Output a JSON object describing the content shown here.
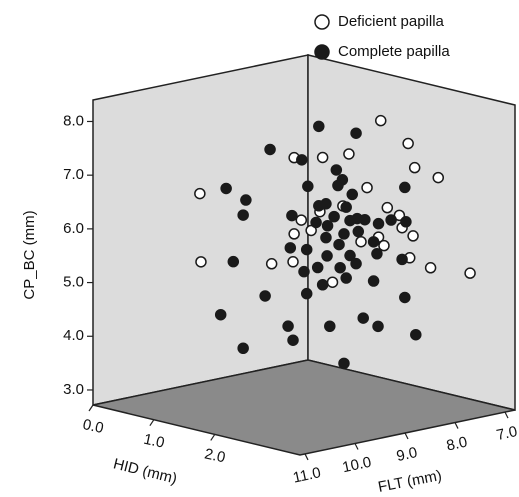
{
  "chart_data": {
    "type": "scatter",
    "xlabel": "HID (mm)",
    "ylabel": "FLT (mm)",
    "zlabel": "CP_BC (mm)",
    "xlim": [
      0,
      3.4
    ],
    "ylim": [
      11.1,
      6.8
    ],
    "zlim": [
      2.72,
      8.4
    ],
    "xticks": [
      {
        "value": 0,
        "label": "0.0"
      },
      {
        "value": 1,
        "label": "1.0"
      },
      {
        "value": 2,
        "label": "2.0"
      }
    ],
    "yticks": [
      {
        "value": 11,
        "label": "11.0"
      },
      {
        "value": 10,
        "label": "10.0"
      },
      {
        "value": 9,
        "label": "9.0"
      },
      {
        "value": 8,
        "label": "8.0"
      },
      {
        "value": 7,
        "label": "7.0"
      }
    ],
    "zticks": [
      {
        "value": 3,
        "label": "3.0"
      },
      {
        "value": 4,
        "label": "4.0"
      },
      {
        "value": 5,
        "label": "5.0"
      },
      {
        "value": 6,
        "label": "6.0"
      },
      {
        "value": 7,
        "label": "7.0"
      },
      {
        "value": 8,
        "label": "8.0"
      }
    ],
    "legend": "top",
    "series": [
      {
        "name": "Deficient papilla",
        "color": "#1a1a1a",
        "hollow": true,
        "x": [
          2.32,
          2.54,
          1.85,
          2.06,
          2.59,
          1.62,
          0.86,
          2.21,
          2.78,
          2.01,
          2.37,
          1.68,
          2.47,
          1.76,
          1.62,
          2.49,
          2.34,
          2.16,
          2.3,
          2.58,
          2.55,
          0.87,
          1.44,
          1.61,
          2.72,
          3.04,
          1.93,
          1.83
        ],
        "y": [
          8.17,
          7.89,
          8.76,
          8.49,
          7.82,
          9.05,
          10.01,
          8.31,
          7.58,
          8.55,
          8.1,
          8.98,
          7.98,
          8.88,
          9.05,
          7.95,
          8.13,
          8.37,
          8.19,
          7.84,
          7.87,
          10.0,
          9.28,
          9.06,
          7.66,
          7.26,
          8.66,
          8.79
        ],
        "z": [
          8.08,
          7.66,
          7.38,
          7.45,
          7.21,
          7.37,
          6.68,
          6.83,
          7.03,
          6.48,
          6.46,
          6.21,
          6.32,
          6.02,
          5.95,
          6.09,
          5.75,
          5.82,
          5.91,
          5.94,
          5.53,
          5.41,
          5.39,
          5.43,
          5.35,
          5.26,
          5.06,
          6.37
        ]
      },
      {
        "name": "Complete papilla",
        "color": "#1a1a1a",
        "hollow": false,
        "x": [
          1.82,
          2.12,
          1.43,
          1.68,
          1.96,
          2.01,
          1.97,
          1.07,
          1.23,
          1.73,
          2.09,
          2.51,
          1.82,
          1.88,
          1.21,
          1.6,
          1.94,
          2.04,
          2.13,
          1.8,
          1.89,
          2.07,
          2.19,
          2.3,
          2.4,
          2.52,
          2.02,
          2.14,
          2.26,
          1.88,
          1.59,
          1.72,
          1.98,
          2.29,
          2.49,
          1.13,
          1.89,
          2.07,
          1.7,
          1.81,
          1.99,
          2.12,
          2.04,
          1.85,
          2.26,
          1.72,
          1.39,
          2.51,
          1.03,
          2.18,
          2.3,
          1.57,
          1.91,
          1.61,
          2.6,
          1.21,
          2.02
        ],
        "y": [
          8.8,
          8.42,
          9.3,
          8.97,
          8.62,
          8.56,
          8.6,
          9.74,
          9.54,
          8.91,
          8.46,
          7.92,
          8.8,
          8.73,
          9.57,
          9.07,
          8.64,
          8.52,
          8.41,
          8.83,
          8.71,
          8.48,
          8.33,
          8.19,
          8.06,
          7.91,
          8.54,
          8.4,
          8.24,
          8.73,
          9.09,
          8.92,
          8.59,
          8.21,
          7.95,
          9.67,
          8.72,
          8.48,
          8.95,
          8.81,
          8.58,
          8.42,
          8.52,
          8.76,
          8.24,
          8.92,
          9.35,
          7.92,
          9.8,
          8.35,
          8.2,
          9.11,
          8.69,
          9.06,
          7.81,
          9.57,
          8.54
        ],
        "z": [
          7.96,
          7.84,
          7.52,
          7.33,
          7.15,
          6.97,
          6.86,
          6.78,
          6.57,
          6.84,
          6.7,
          6.84,
          6.48,
          6.52,
          6.29,
          6.29,
          6.28,
          6.46,
          6.25,
          6.17,
          6.11,
          6.21,
          6.23,
          6.16,
          6.23,
          6.2,
          5.96,
          6.01,
          5.82,
          5.89,
          5.69,
          5.66,
          5.76,
          5.6,
          5.5,
          5.42,
          5.55,
          5.56,
          5.25,
          5.33,
          5.33,
          5.41,
          5.14,
          5.01,
          5.09,
          4.84,
          4.79,
          4.79,
          4.43,
          4.4,
          4.25,
          4.23,
          4.24,
          3.97,
          4.1,
          3.81,
          3.55
        ]
      }
    ]
  }
}
